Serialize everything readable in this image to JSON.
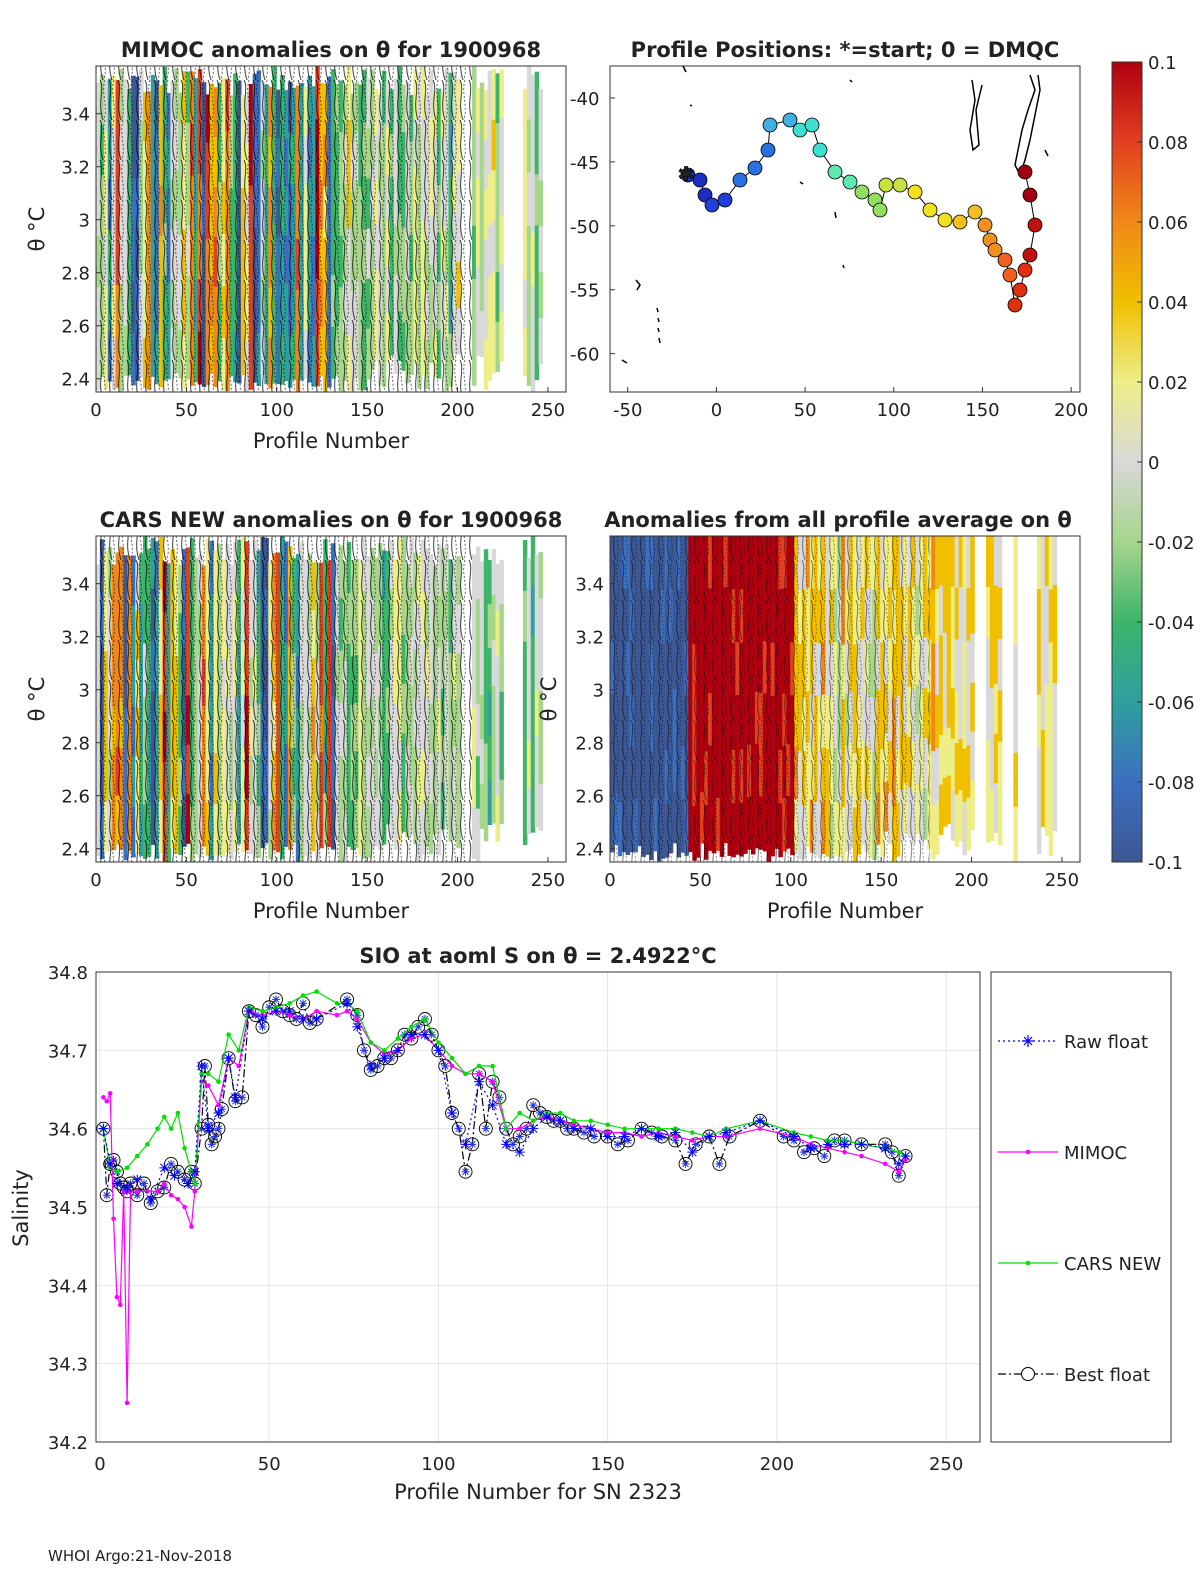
{
  "panels": {
    "mimoc": {
      "title": "MIMOC anomalies on θ  for 1900968",
      "xlabel": "Profile Number",
      "ylabel": "θ °C",
      "xticks": [
        "0",
        "50",
        "100",
        "150",
        "200",
        "250"
      ],
      "yticks": [
        "2.4",
        "2.6",
        "2.8",
        "3",
        "3.2",
        "3.4"
      ]
    },
    "positions": {
      "title": "Profile Positions: *=start; 0 = DMQC",
      "xticks": [
        "-50",
        "0",
        "50",
        "100",
        "150",
        "200"
      ],
      "yticks": [
        "-40",
        "-45",
        "-50",
        "-55",
        "-60"
      ]
    },
    "cars": {
      "title": "CARS NEW anomalies on θ for 1900968",
      "xlabel": "Profile Number",
      "ylabel": "θ °C",
      "xticks": [
        "0",
        "50",
        "100",
        "150",
        "200",
        "250"
      ],
      "yticks": [
        "2.4",
        "2.6",
        "2.8",
        "3",
        "3.2",
        "3.4"
      ]
    },
    "average": {
      "title": "Anomalies from all profile average on θ",
      "xlabel": "Profile Number",
      "ylabel": "θ °C",
      "xticks": [
        "0",
        "50",
        "100",
        "150",
        "200",
        "250"
      ],
      "yticks": [
        "2.4",
        "2.6",
        "2.8",
        "3",
        "3.2",
        "3.4"
      ]
    }
  },
  "colorbar": {
    "ticks": [
      "0.1",
      "0.08",
      "0.06",
      "0.04",
      "0.02",
      "0",
      "-0.02",
      "-0.04",
      "-0.06",
      "-0.08",
      "-0.1"
    ],
    "range": [
      -0.1,
      0.1
    ]
  },
  "chart_data": {
    "type": "line",
    "title": "SIO at aoml S on θ = 2.4922°C",
    "xlabel": "Profile Number for SN 2323",
    "ylabel": "Salinity",
    "xlim": [
      0,
      260
    ],
    "ylim": [
      34.2,
      34.8
    ],
    "xticks": [
      "0",
      "50",
      "100",
      "150",
      "200",
      "250"
    ],
    "yticks": [
      "34.2",
      "34.3",
      "34.4",
      "34.5",
      "34.6",
      "34.7",
      "34.8"
    ],
    "series": [
      {
        "name": "Raw float",
        "color": "#0000ff",
        "style": "dotted",
        "marker": "asterisk",
        "x": [
          1,
          3,
          5,
          8,
          11,
          15,
          19,
          22,
          26,
          28,
          30,
          32,
          35,
          38,
          40,
          44,
          48,
          52,
          56,
          60,
          64,
          73,
          76,
          80,
          84,
          88,
          92,
          96,
          100,
          104,
          108,
          112,
          116,
          120,
          124,
          128,
          132,
          136,
          140,
          145,
          150,
          155,
          160,
          165,
          170,
          175,
          180,
          185,
          195,
          205,
          210,
          215,
          220,
          225,
          232,
          236,
          238
        ],
        "y": [
          34.6,
          34.555,
          34.53,
          34.525,
          34.535,
          34.51,
          34.55,
          34.54,
          34.53,
          34.545,
          34.68,
          34.6,
          34.62,
          34.69,
          34.64,
          34.75,
          34.74,
          34.75,
          34.75,
          34.74,
          34.74,
          34.76,
          34.73,
          34.68,
          34.69,
          34.7,
          34.72,
          34.72,
          34.7,
          34.62,
          34.58,
          34.66,
          34.63,
          34.58,
          34.57,
          34.6,
          34.615,
          34.61,
          34.6,
          34.6,
          34.59,
          34.59,
          34.6,
          34.59,
          34.595,
          34.57,
          34.59,
          34.595,
          34.61,
          34.59,
          34.575,
          34.58,
          34.58,
          34.58,
          34.575,
          34.555,
          34.565
        ]
      },
      {
        "name": "MIMOC",
        "color": "#ff00ff",
        "style": "solid",
        "marker": "dot",
        "x": [
          1,
          2,
          3,
          4,
          5,
          6,
          7,
          8,
          9,
          11,
          14,
          17,
          19,
          21,
          23,
          25,
          27,
          28,
          30,
          32,
          35,
          38,
          41,
          44,
          48,
          52,
          56,
          60,
          64,
          70,
          73,
          76,
          80,
          84,
          88,
          92,
          96,
          100,
          104,
          108,
          112,
          116,
          120,
          124,
          128,
          132,
          136,
          140,
          145,
          150,
          155,
          160,
          165,
          170,
          175,
          180,
          185,
          195,
          205,
          210,
          215,
          220,
          225,
          232,
          236,
          238
        ],
        "y": [
          34.64,
          34.635,
          34.645,
          34.485,
          34.385,
          34.375,
          34.52,
          34.25,
          34.52,
          34.52,
          34.52,
          34.52,
          34.53,
          34.515,
          34.51,
          34.5,
          34.475,
          34.52,
          34.66,
          34.655,
          34.63,
          34.69,
          34.68,
          34.75,
          34.745,
          34.75,
          34.745,
          34.74,
          34.75,
          34.745,
          34.75,
          34.74,
          34.71,
          34.695,
          34.7,
          34.715,
          34.72,
          34.7,
          34.68,
          34.67,
          34.67,
          34.66,
          34.6,
          34.6,
          34.61,
          34.615,
          34.61,
          34.605,
          34.6,
          34.595,
          34.595,
          34.59,
          34.595,
          34.59,
          34.585,
          34.59,
          34.59,
          34.6,
          34.59,
          34.58,
          34.575,
          34.57,
          34.565,
          34.555,
          34.545,
          34.56
        ]
      },
      {
        "name": "CARS NEW",
        "color": "#00e000",
        "style": "solid",
        "marker": "dot",
        "x": [
          1,
          3,
          5,
          8,
          11,
          14,
          17,
          19,
          21,
          23,
          25,
          27,
          28,
          30,
          32,
          35,
          38,
          41,
          44,
          48,
          52,
          56,
          60,
          64,
          70,
          73,
          76,
          80,
          84,
          88,
          92,
          96,
          100,
          104,
          108,
          112,
          116,
          120,
          124,
          128,
          132,
          136,
          140,
          145,
          150,
          155,
          160,
          165,
          170,
          175,
          180,
          185,
          195,
          205,
          210,
          215,
          220,
          225,
          232,
          236,
          238
        ],
        "y": [
          34.6,
          34.55,
          34.545,
          34.55,
          34.565,
          34.58,
          34.6,
          34.615,
          34.6,
          34.62,
          34.575,
          34.545,
          34.53,
          34.67,
          34.67,
          34.66,
          34.72,
          34.7,
          34.755,
          34.75,
          34.755,
          34.76,
          34.77,
          34.775,
          34.76,
          34.76,
          34.75,
          34.71,
          34.7,
          34.715,
          34.73,
          34.74,
          34.71,
          34.69,
          34.67,
          34.68,
          34.68,
          34.6,
          34.62,
          34.61,
          34.62,
          34.62,
          34.61,
          34.61,
          34.605,
          34.6,
          34.6,
          34.6,
          34.6,
          34.595,
          34.59,
          34.6,
          34.61,
          34.595,
          34.59,
          34.585,
          34.585,
          34.58,
          34.575,
          34.57,
          34.565
        ]
      },
      {
        "name": "Best float",
        "color": "#000000",
        "style": "dashdot",
        "marker": "circle",
        "x": [
          1,
          2,
          3,
          4,
          5,
          6,
          7,
          8,
          9,
          11,
          13,
          15,
          17,
          19,
          21,
          23,
          25,
          27,
          28,
          30,
          31,
          32,
          33,
          34,
          35,
          36,
          38,
          40,
          42,
          44,
          46,
          48,
          50,
          52,
          54,
          56,
          58,
          60,
          62,
          64,
          73,
          76,
          78,
          80,
          82,
          84,
          86,
          88,
          90,
          92,
          94,
          96,
          98,
          100,
          102,
          104,
          106,
          108,
          110,
          112,
          114,
          116,
          118,
          120,
          122,
          124,
          126,
          128,
          130,
          132,
          134,
          136,
          138,
          140,
          143,
          146,
          150,
          153,
          156,
          160,
          163,
          166,
          170,
          173,
          176,
          180,
          183,
          186,
          195,
          202,
          205,
          208,
          211,
          214,
          217,
          220,
          225,
          232,
          234,
          236,
          238
        ],
        "y": [
          34.6,
          34.515,
          34.555,
          34.56,
          34.545,
          34.53,
          34.525,
          34.52,
          34.53,
          34.515,
          34.53,
          34.505,
          34.52,
          34.525,
          34.555,
          34.545,
          34.535,
          34.545,
          34.53,
          34.6,
          34.68,
          34.605,
          34.58,
          34.59,
          34.6,
          34.625,
          34.69,
          34.635,
          34.64,
          34.75,
          34.745,
          34.73,
          34.755,
          34.765,
          34.75,
          34.745,
          34.74,
          34.76,
          34.735,
          34.74,
          34.765,
          34.745,
          34.7,
          34.675,
          34.68,
          34.69,
          34.69,
          34.7,
          34.72,
          34.715,
          34.73,
          34.74,
          34.72,
          34.7,
          34.68,
          34.62,
          34.6,
          34.545,
          34.58,
          34.67,
          34.6,
          34.66,
          34.64,
          34.6,
          34.58,
          34.59,
          34.6,
          34.63,
          34.62,
          34.615,
          34.61,
          34.61,
          34.6,
          34.6,
          34.595,
          34.59,
          34.59,
          34.58,
          34.585,
          34.6,
          34.595,
          34.59,
          34.585,
          34.555,
          34.58,
          34.59,
          34.555,
          34.59,
          34.61,
          34.59,
          34.585,
          34.57,
          34.575,
          34.565,
          34.585,
          34.585,
          34.58,
          34.58,
          34.57,
          34.54,
          34.565
        ]
      }
    ]
  },
  "footer": "WHOI Argo:21-Nov-2018"
}
